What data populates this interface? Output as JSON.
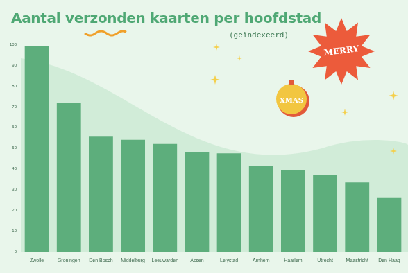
{
  "chart_data": {
    "type": "bar",
    "title": "Aantal verzonden kaarten per hoofdstad",
    "subtitle": "(geïndexeerd)",
    "categories": [
      "Zwolle",
      "Groningen",
      "Den Bosch",
      "Middelburg",
      "Leeuwarden",
      "Assen",
      "Lelystad",
      "Arnhem",
      "Haarlem",
      "Utrecht",
      "Maastricht",
      "Den Haag"
    ],
    "values": [
      99,
      72,
      55.5,
      54,
      52,
      48,
      47.5,
      41.5,
      39.5,
      37,
      33.5,
      26
    ],
    "color": "#5dae7c",
    "ylim": [
      0,
      100
    ],
    "yticks": [
      0,
      10,
      20,
      30,
      40,
      50,
      60,
      70,
      80,
      90,
      100
    ],
    "grid": false,
    "annotations": [
      "MERRY",
      "XMAS"
    ]
  }
}
